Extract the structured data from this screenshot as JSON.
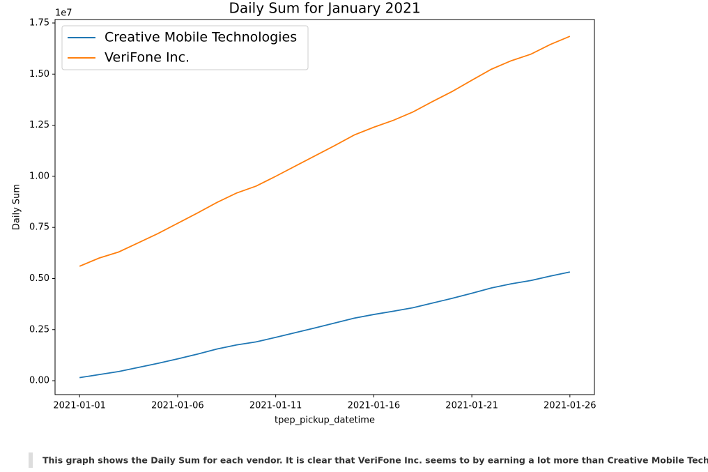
{
  "chart_data": {
    "type": "line",
    "title": "Daily Sum for January 2021",
    "x_label": "tpep_pickup_datetime",
    "y_label": "Daily Sum",
    "y_offset_label": "1e7",
    "x": [
      "2021-01-01",
      "2021-01-02",
      "2021-01-03",
      "2021-01-04",
      "2021-01-05",
      "2021-01-06",
      "2021-01-07",
      "2021-01-08",
      "2021-01-09",
      "2021-01-10",
      "2021-01-11",
      "2021-01-12",
      "2021-01-13",
      "2021-01-14",
      "2021-01-15",
      "2021-01-16",
      "2021-01-17",
      "2021-01-18",
      "2021-01-19",
      "2021-01-20",
      "2021-01-21",
      "2021-01-22",
      "2021-01-23",
      "2021-01-24",
      "2021-01-25",
      "2021-01-26"
    ],
    "xticks": [
      "2021-01-01",
      "2021-01-06",
      "2021-01-11",
      "2021-01-16",
      "2021-01-21",
      "2021-01-26"
    ],
    "series": [
      {
        "name": "Creative Mobile Technologies",
        "color": "#1f77b4",
        "values": [
          0.015,
          0.03,
          0.045,
          0.065,
          0.085,
          0.107,
          0.13,
          0.155,
          0.175,
          0.19,
          0.212,
          0.235,
          0.258,
          0.282,
          0.306,
          0.324,
          0.34,
          0.357,
          0.38,
          0.403,
          0.428,
          0.454,
          0.474,
          0.49,
          0.512,
          0.532
        ]
      },
      {
        "name": "VeriFone Inc.",
        "color": "#ff7f0e",
        "values": [
          0.56,
          0.6,
          0.63,
          0.675,
          0.72,
          0.77,
          0.82,
          0.872,
          0.918,
          0.952,
          1.0,
          1.05,
          1.1,
          1.15,
          1.202,
          1.24,
          1.274,
          1.315,
          1.366,
          1.415,
          1.47,
          1.524,
          1.565,
          1.597,
          1.645,
          1.685
        ]
      }
    ],
    "ylim": [
      -0.068,
      1.767
    ],
    "yticks": [
      {
        "value": 0,
        "label": "0.00"
      },
      {
        "value": 0.25,
        "label": "0.25"
      },
      {
        "value": 0.5,
        "label": "0.50"
      },
      {
        "value": 0.75,
        "label": "0.75"
      },
      {
        "value": 1,
        "label": "1.00"
      },
      {
        "value": 1.25,
        "label": "1.25"
      },
      {
        "value": 1.5,
        "label": "1.50"
      },
      {
        "value": 1.75,
        "label": "1.75"
      }
    ],
    "legend": "upper left",
    "grid": false
  },
  "caption": "This graph shows the Daily Sum for each vendor. It is clear that VeriFone Inc. seems to by earning a lot more than Creative Mobile Technologies."
}
